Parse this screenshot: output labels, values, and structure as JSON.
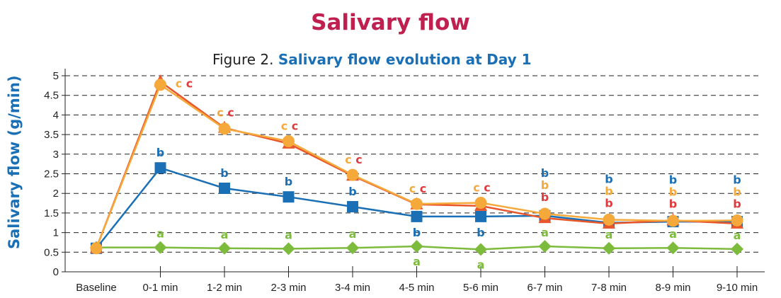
{
  "header": {
    "title": "Salivary flow",
    "figure_prefix": "Figure 2.",
    "figure_title_a": "Salivary flow evolution at",
    "figure_title_b": "Day 1"
  },
  "chart_data": {
    "type": "line",
    "title": "Salivary flow evolution at Day 1",
    "xlabel": "",
    "ylabel": "Salivary flow (g/min)",
    "ylim": [
      0,
      5
    ],
    "yticks": [
      "0",
      "0.5",
      "1",
      "1.5",
      "2",
      "2.5",
      "3",
      "3.5",
      "4",
      "4.5",
      "5"
    ],
    "grid": "horizontal dashed",
    "categories": [
      "Baseline",
      "0-1 min",
      "1-2 min",
      "2-3 min",
      "3-4 min",
      "4-5 min",
      "5-6 min",
      "6-7 min",
      "7-8 min",
      "8-9 min",
      "9-10 min"
    ],
    "series": [
      {
        "key": "green",
        "color": "#7dbb3c",
        "marker": "diamond",
        "values": [
          0.62,
          0.62,
          0.6,
          0.59,
          0.61,
          0.65,
          0.57,
          0.65,
          0.6,
          0.61,
          0.58
        ]
      },
      {
        "key": "blue",
        "color": "#1a6fb5",
        "marker": "square",
        "values": [
          0.6,
          2.65,
          2.13,
          1.91,
          1.66,
          1.41,
          1.41,
          1.43,
          1.25,
          1.28,
          1.28
        ]
      },
      {
        "key": "red",
        "color": "#e8562a",
        "marker": "triangle",
        "values": [
          0.6,
          4.85,
          3.67,
          3.27,
          2.45,
          1.72,
          1.68,
          1.37,
          1.23,
          1.31,
          1.23
        ]
      },
      {
        "key": "orange",
        "color": "#f6a93b",
        "marker": "circle",
        "values": [
          0.6,
          4.77,
          3.65,
          3.33,
          2.47,
          1.73,
          1.76,
          1.48,
          1.33,
          1.3,
          1.31
        ]
      }
    ],
    "letter_colors": {
      "blue": "#1a6fb5",
      "orange": "#f6a93b",
      "red": "#e03a3e",
      "green": "#7dbb3c"
    },
    "annotations": [
      {
        "i": 1,
        "green": "a",
        "green_pos": "above",
        "blue": "b",
        "blue_pos": "above",
        "cc": [
          "c",
          "c"
        ]
      },
      {
        "i": 2,
        "green": "a",
        "green_pos": "above",
        "blue": "b",
        "blue_pos": "above",
        "cc": [
          "c",
          "c"
        ]
      },
      {
        "i": 3,
        "green": "a",
        "green_pos": "above",
        "blue": "b",
        "blue_pos": "above",
        "cc": [
          "c",
          "c"
        ]
      },
      {
        "i": 4,
        "green": "a",
        "green_pos": "above",
        "blue": "b",
        "blue_pos": "above",
        "cc": [
          "c",
          "c"
        ]
      },
      {
        "i": 5,
        "green": "a",
        "green_pos": "below",
        "blue": "b",
        "blue_pos": "below",
        "cc": [
          "c",
          "c"
        ]
      },
      {
        "i": 6,
        "green": "a",
        "green_pos": "below",
        "blue": "b",
        "blue_pos": "below",
        "cc": [
          "c",
          "c"
        ]
      },
      {
        "i": 7,
        "green": "a",
        "green_pos": "above",
        "stack": [
          "b",
          "b",
          "b"
        ]
      },
      {
        "i": 8,
        "green": "a",
        "green_pos": "above",
        "stack": [
          "b",
          "b",
          "b"
        ]
      },
      {
        "i": 9,
        "green": "a",
        "green_pos": "above",
        "stack": [
          "b",
          "b",
          "b"
        ]
      },
      {
        "i": 10,
        "green": "a",
        "green_pos": "above",
        "stack": [
          "b",
          "b",
          "b"
        ]
      }
    ]
  }
}
